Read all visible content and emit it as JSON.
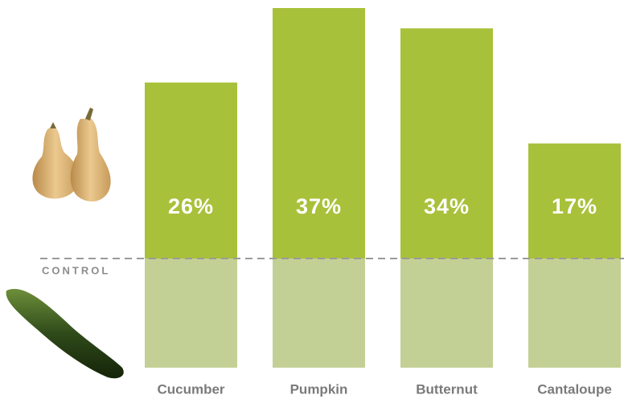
{
  "chart_data": {
    "type": "bar",
    "categories": [
      "Cucumber",
      "Pumpkin",
      "Butternut",
      "Cantaloupe"
    ],
    "values": [
      26,
      37,
      34,
      17
    ],
    "value_labels": [
      "26%",
      "37%",
      "34%",
      "17%"
    ],
    "color": "#a8c13a",
    "control_color": "#c3d095",
    "annotation": "CONTROL"
  }
}
